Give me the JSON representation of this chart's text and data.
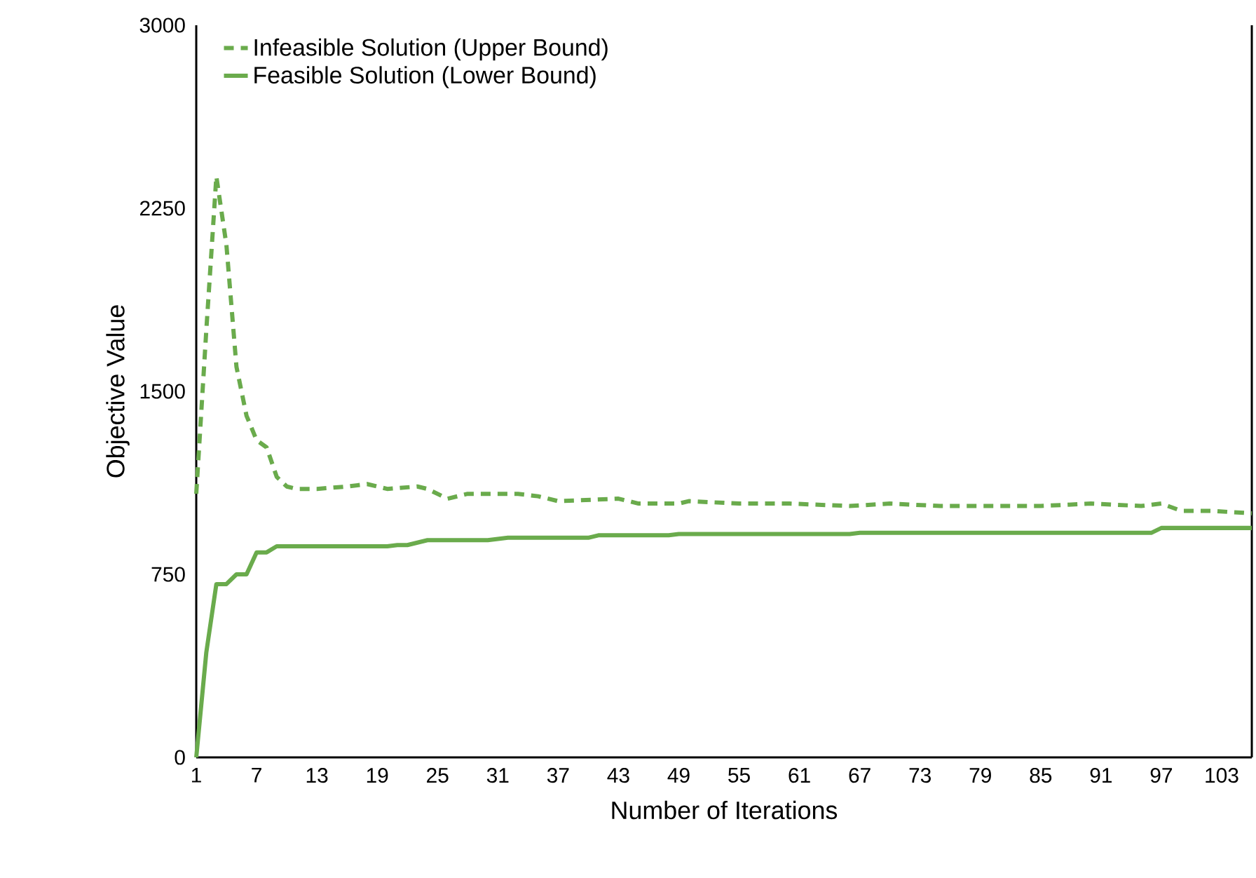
{
  "chart_data": {
    "type": "line",
    "xlabel": "Number of Iterations",
    "ylabel": "Objective Value",
    "xlim": [
      1,
      106
    ],
    "xticks": [
      1,
      7,
      13,
      19,
      25,
      31,
      37,
      43,
      49,
      55,
      61,
      67,
      73,
      79,
      85,
      91,
      97,
      103
    ],
    "ylim": [
      0,
      3000
    ],
    "yticks": [
      0,
      750,
      1500,
      2250,
      3000
    ],
    "legend": "top left",
    "grid": false,
    "series": [
      {
        "name": "Infeasible Solution (Upper Bound)",
        "color": "#6aab4c",
        "line_style": "dashed",
        "x": [
          1,
          2,
          3,
          4,
          5,
          6,
          7,
          8,
          9,
          10,
          11,
          13,
          16,
          18,
          20,
          23,
          24,
          26,
          28,
          33,
          35,
          37,
          43,
          45,
          49,
          50,
          55,
          60,
          66,
          70,
          75,
          80,
          85,
          90,
          95,
          97,
          99,
          102,
          106
        ],
        "values": [
          1080,
          1750,
          2380,
          2100,
          1600,
          1400,
          1300,
          1270,
          1150,
          1110,
          1100,
          1100,
          1110,
          1120,
          1100,
          1110,
          1100,
          1060,
          1080,
          1080,
          1070,
          1050,
          1060,
          1040,
          1040,
          1050,
          1040,
          1040,
          1030,
          1040,
          1030,
          1030,
          1030,
          1040,
          1030,
          1040,
          1010,
          1010,
          1000
        ]
      },
      {
        "name": "Feasible Solution (Lower Bound)",
        "color": "#6aab4c",
        "line_style": "solid",
        "x": [
          1,
          2,
          3,
          4,
          5,
          6,
          7,
          8,
          9,
          20,
          21,
          22,
          23,
          24,
          30,
          31,
          32,
          40,
          41,
          48,
          49,
          66,
          67,
          96,
          97,
          106
        ],
        "values": [
          0,
          430,
          710,
          710,
          750,
          750,
          840,
          840,
          865,
          865,
          870,
          870,
          880,
          890,
          890,
          895,
          900,
          900,
          910,
          910,
          915,
          915,
          920,
          920,
          940,
          940
        ]
      }
    ]
  }
}
